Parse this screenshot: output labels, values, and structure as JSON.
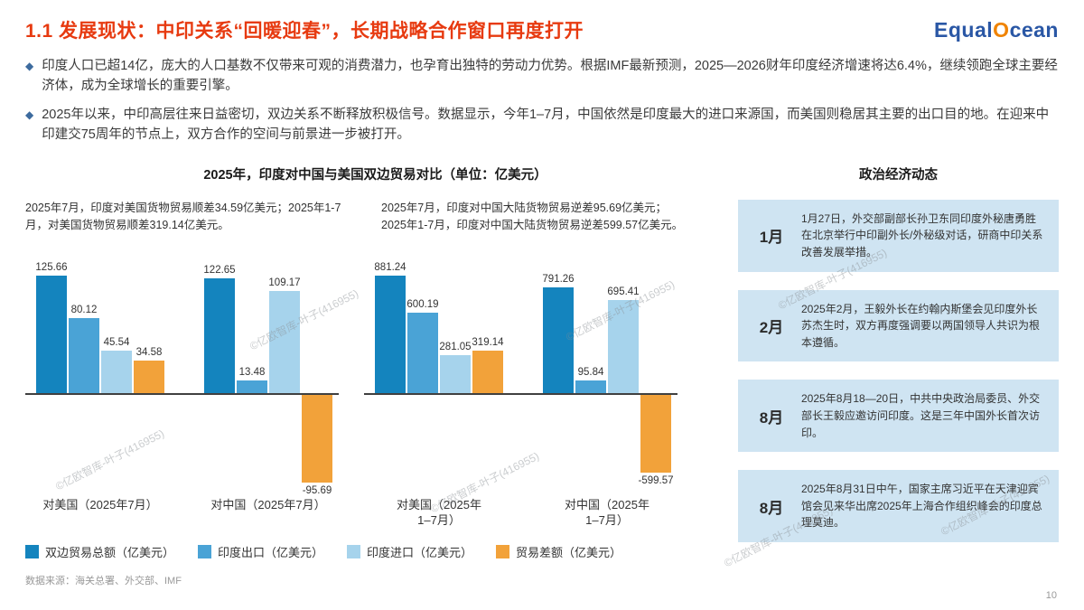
{
  "header": {
    "title": "1.1 发展现状：中印关系“回暖迎春”，长期战略合作窗口再度打开",
    "logo": {
      "equal": "Equal",
      "o": "O",
      "cean": "cean"
    }
  },
  "bullets": [
    "印度人口已超14亿，庞大的人口基数不仅带来可观的消费潜力，也孕育出独特的劳动力优势。根据IMF最新预测，2025—2026财年印度经济增速将达6.4%，继续领跑全球主要经济体，成为全球增长的重要引擎。",
    "2025年以来，中印高层往来日益密切，双边关系不断释放积极信号。数据显示，今年1–7月，中国依然是印度最大的进口来源国，而美国则稳居其主要的出口目的地。在迎来中印建交75周年的节点上，双方合作的空间与前景进一步被打开。"
  ],
  "chart_section": {
    "title": "2025年，印度对中国与美国双边贸易对比（单位：亿美元）",
    "left_note": "2025年7月，印度对美国货物贸易顺差34.59亿美元；2025年1-7月，对美国货物贸易顺差319.14亿美元。",
    "right_note": "2025年7月，印度对中国大陆货物贸易逆差95.69亿美元；2025年1-7月，印度对中国大陆货物贸易逆差599.57亿美元。"
  },
  "chart_data": [
    {
      "type": "bar",
      "categories": [
        "对美国（2025年7月）",
        "对中国（2025年7月）"
      ],
      "series": [
        {
          "name": "双边贸易总额（亿美元）",
          "values": [
            125.66,
            122.65
          ]
        },
        {
          "name": "印度出口（亿美元）",
          "values": [
            80.12,
            13.48
          ]
        },
        {
          "name": "印度进口（亿美元）",
          "values": [
            45.54,
            109.17
          ]
        },
        {
          "name": "贸易差额（亿美元）",
          "values": [
            34.58,
            -95.69
          ]
        }
      ],
      "ylim": [
        -110,
        135
      ],
      "grid": false,
      "legend_position": "bottom"
    },
    {
      "type": "bar",
      "categories": [
        "对美国（2025年\n1–7月）",
        "对中国（2025年\n1–7月）"
      ],
      "series": [
        {
          "name": "双边贸易总额（亿美元）",
          "values": [
            881.24,
            791.26
          ]
        },
        {
          "name": "印度出口（亿美元）",
          "values": [
            600.19,
            95.84
          ]
        },
        {
          "name": "印度进口（亿美元）",
          "values": [
            281.05,
            695.41
          ]
        },
        {
          "name": "贸易差额（亿美元）",
          "values": [
            319.14,
            -599.57
          ]
        }
      ],
      "ylim": [
        -700,
        950
      ],
      "grid": false,
      "legend_position": "bottom"
    }
  ],
  "source": "数据来源：海关总署、外交部、IMF",
  "sidebar": {
    "title": "政治经济动态",
    "items": [
      {
        "month": "1月",
        "text": "1月27日，外交部副部长孙卫东同印度外秘唐勇胜在北京举行中印副外长/外秘级对话，研商中印关系改善发展举措。"
      },
      {
        "month": "2月",
        "text": "2025年2月，王毅外长在约翰内斯堡会见印度外长苏杰生时，双方再度强调要以两国领导人共识为根本遵循。"
      },
      {
        "month": "8月",
        "text": "2025年8月18—20日，中共中央政治局委员、外交部长王毅应邀访问印度。这是三年中国外长首次访印。"
      },
      {
        "month": "8月",
        "text": "2025年8月31日中午，国家主席习近平在天津迎宾馆会见来华出席2025年上海合作组织峰会的印度总理莫迪。"
      }
    ]
  },
  "page_number": "10",
  "watermark": "©亿欧智库-叶子(416955)",
  "colors": {
    "title_accent": "#e73a10",
    "logo_blue": "#2a57a5",
    "logo_orange": "#f08300",
    "timeline_box_bg": "#cfe4f2",
    "series": [
      "#1484be",
      "#4aa3d6",
      "#a6d3ec",
      "#f2a23a"
    ]
  }
}
